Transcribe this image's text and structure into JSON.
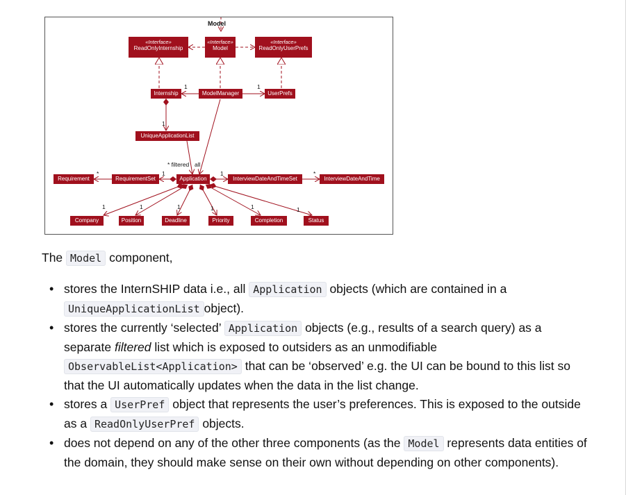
{
  "diagram": {
    "package_label": "Model",
    "stereotype": "«Interface»",
    "interfaces": [
      "ReadOnlyInternship",
      "Model",
      "ReadOnlyUserPrefs"
    ],
    "classes": {
      "internship": "Internship",
      "model_manager": "ModelManager",
      "user_prefs": "UserPrefs",
      "unique_list": "UniqueApplicationList",
      "requirement": "Requirement",
      "requirement_set": "RequirementSet",
      "application": "Application",
      "interview_set": "InterviewDateAndTimeSet",
      "interview": "InterviewDateAndTime",
      "company": "Company",
      "position": "Position",
      "deadline": "Deadline",
      "priority": "Priority",
      "completion": "Completion",
      "status": "Status"
    },
    "multiplicity_one": "1",
    "multiplicity_many": "*",
    "filtered_label": "* filtered",
    "all_label": "all"
  },
  "intro": {
    "before": "The",
    "code": "Model",
    "after": "component,"
  },
  "bullets": {
    "b1": {
      "t1": "stores the InternSHIP data i.e., all",
      "c1": "Application",
      "t2": "objects (which are contained in a",
      "c2": "UniqueApplicationList",
      "t3": "object)."
    },
    "b2": {
      "t1": "stores the currently ‘selected’",
      "c1": "Application",
      "t2": "objects (e.g., results of a search query) as a separate",
      "em": "filtered",
      "t3": "list which is exposed to outsiders as an unmodifiable",
      "c2": "ObservableList<Application>",
      "t4": "that can be ‘observed’ e.g. the UI can be bound to this list so that the UI automatically updates when the data in the list change."
    },
    "b3": {
      "t1": "stores a",
      "c1": "UserPref",
      "t2": "object that represents the user’s preferences. This is exposed to the outside as a",
      "c2": "ReadOnlyUserPref",
      "t3": "objects."
    },
    "b4": {
      "t1": "does not depend on any of the other three components (as the",
      "c1": "Model",
      "t2": "represents data entities of the domain, they should make sense on their own without depending on other components)."
    }
  }
}
